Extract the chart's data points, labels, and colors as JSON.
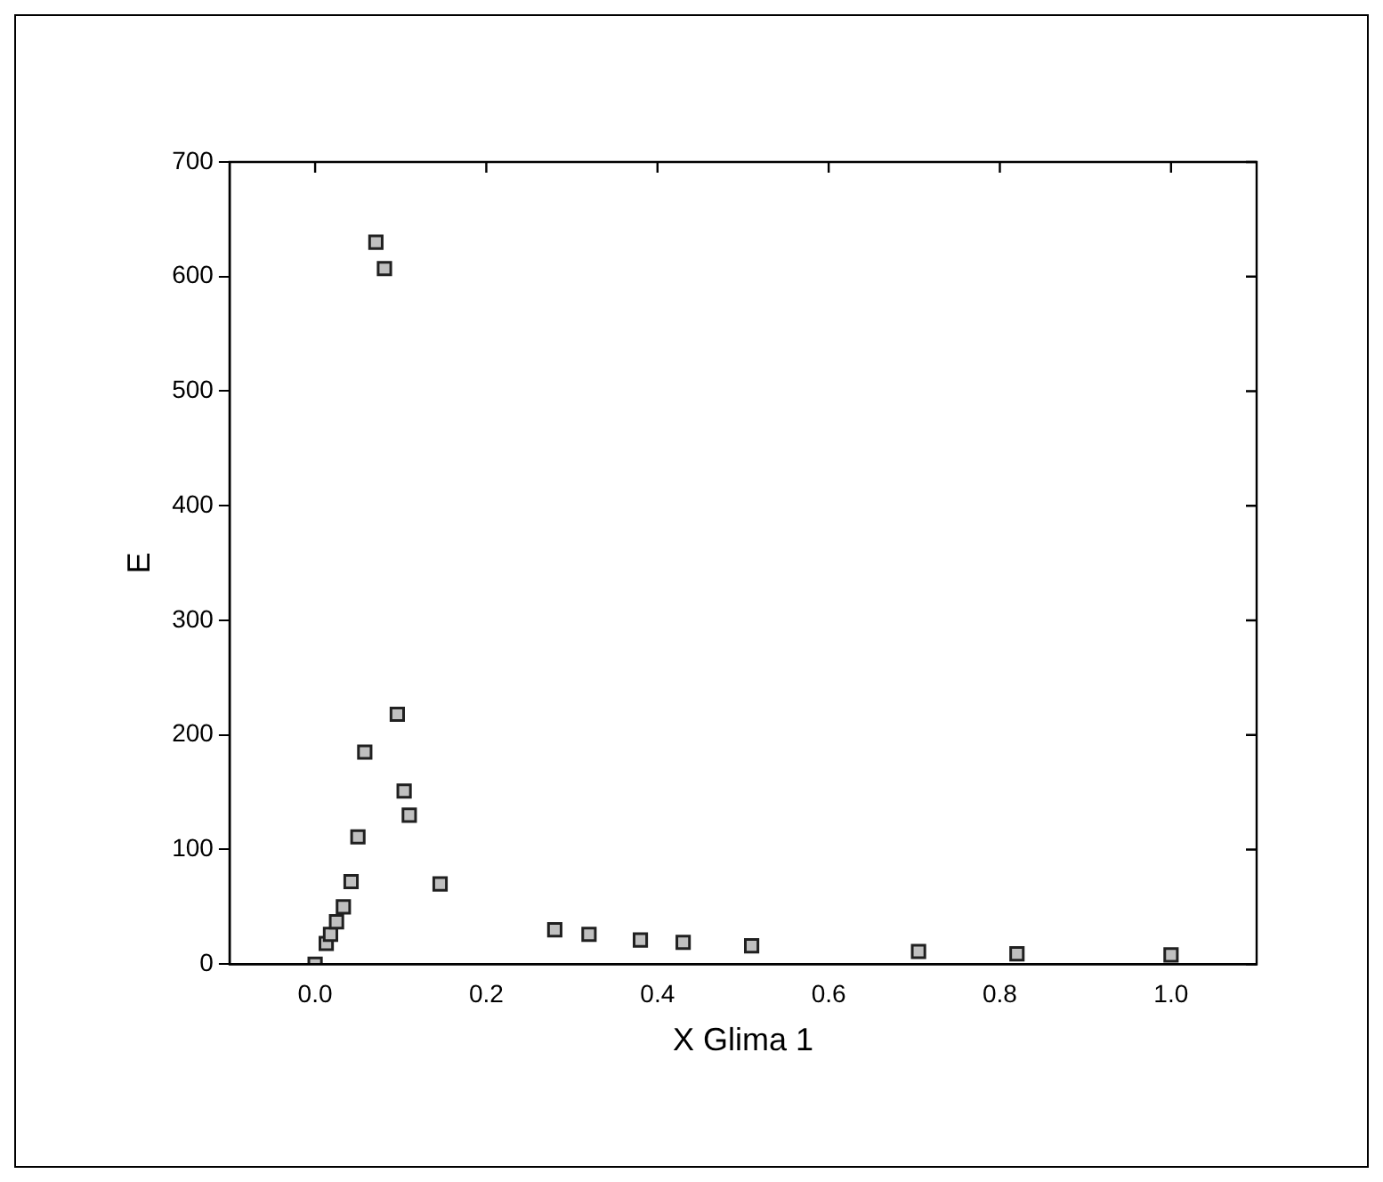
{
  "chart_data": {
    "type": "scatter",
    "xlabel": "X Glima 1",
    "ylabel": "E",
    "marker": "square",
    "grid": false,
    "legend": false,
    "xlim": [
      -0.1,
      1.1
    ],
    "xticks": [
      {
        "value": 0,
        "label": "0.0"
      },
      0.2,
      0.4,
      0.6,
      0.8,
      {
        "value": 1,
        "label": "1.0"
      }
    ],
    "ylim": [
      0,
      700
    ],
    "yticks": [
      0,
      100,
      200,
      300,
      400,
      500,
      600,
      700
    ],
    "series": [
      {
        "color": "#c0c0c0",
        "x": [
          0,
          0.013,
          0.018,
          0.025,
          0.033,
          0.042,
          0.05,
          0.058,
          0.071,
          0.081,
          0.096,
          0.104,
          0.11,
          0.146,
          0.28,
          0.32,
          0.38,
          0.43,
          0.51,
          0.705,
          0.82,
          1.0
        ],
        "values": [
          0,
          18,
          26,
          37,
          50,
          72,
          111,
          185,
          630,
          607,
          218,
          151,
          130,
          70,
          30,
          26,
          21,
          19,
          16,
          11,
          9,
          8
        ]
      }
    ]
  }
}
